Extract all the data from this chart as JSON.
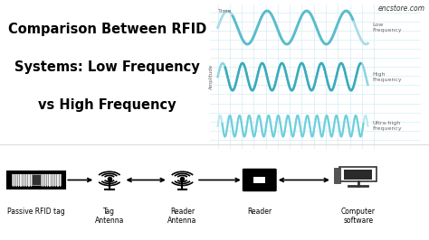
{
  "title_line1": "Comparison Between RFID",
  "title_line2": "Systems: Low Frequency",
  "title_line3": "vs High Frequency",
  "watermark": "encstore.com",
  "bg_color": "#ffffff",
  "wave_bg": "#eef8fb",
  "wave_color_low": "#5bbccc",
  "wave_color_low2": "#a8dde8",
  "wave_color_high": "#3aabbb",
  "wave_color_high2": "#8dd4e0",
  "wave_color_uhf": "#6ecfdd",
  "wave_color_uhf2": "#b8e8f0",
  "grid_color": "#cce8f0",
  "label_low": "Low\nFrequency",
  "label_high": "High\nFrequency",
  "label_uhf": "Ultra-high\nFrequency",
  "axis_label_time": "Time",
  "axis_label_amp": "Amplitude",
  "bottom_labels": [
    "Passive RFID tag",
    "Tag\nAntenna",
    "Reader\nAntenna",
    "Reader",
    "Computer\nsoftware"
  ],
  "divider_color": "#dddddd",
  "title_fontsize": 10.5,
  "label_fontsize": 5.5
}
